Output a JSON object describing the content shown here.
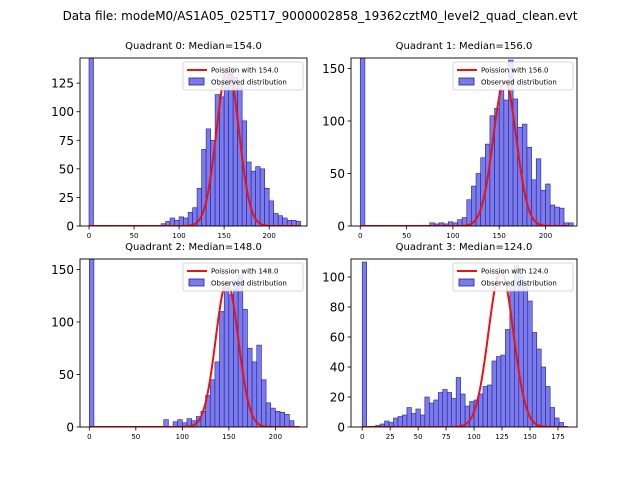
{
  "suptitle": "Data file: modeM0/AS1A05_025T17_9000002858_19362cztM0_level2_quad_clean.evt",
  "colors": {
    "bar_fill": "#7b7bea",
    "bar_edge": "#2020a0",
    "curve": "#ee1111"
  },
  "chart_data": [
    {
      "type": "bar",
      "title": "Quadrant 0: Median=154.0",
      "legend": {
        "curve": "Poission with 154.0",
        "bars": "Observed distribution",
        "placement": "upper-right"
      },
      "xlim": [
        -10,
        242
      ],
      "ylim": [
        0,
        147
      ],
      "xticks": [
        0,
        50,
        100,
        150,
        200
      ],
      "yticks": [
        0,
        25,
        50,
        75,
        100,
        125
      ],
      "bin_width": 5,
      "bins": [
        0,
        80,
        85,
        90,
        95,
        100,
        105,
        110,
        115,
        120,
        125,
        130,
        135,
        140,
        145,
        150,
        155,
        160,
        165,
        170,
        175,
        180,
        185,
        190,
        195,
        200,
        205,
        210,
        215,
        220,
        225,
        230
      ],
      "counts": [
        147,
        2,
        4,
        7,
        5,
        8,
        7,
        12,
        16,
        33,
        67,
        85,
        75,
        115,
        113,
        133,
        139,
        130,
        124,
        92,
        56,
        48,
        52,
        50,
        33,
        22,
        11,
        9,
        7,
        5,
        5,
        4
      ],
      "curve_mean": 154.0,
      "curve_peak": 138
    },
    {
      "type": "bar",
      "title": "Quadrant 1: Median=156.0",
      "legend": {
        "curve": "Poission with 156.0",
        "bars": "Observed distribution",
        "placement": "upper-right"
      },
      "xlim": [
        -10,
        234
      ],
      "ylim": [
        0,
        160
      ],
      "xticks": [
        0,
        50,
        100,
        150,
        200
      ],
      "yticks": [
        0,
        50,
        100,
        150
      ],
      "bin_width": 5,
      "bins": [
        0,
        75,
        80,
        85,
        90,
        95,
        100,
        105,
        110,
        115,
        120,
        125,
        130,
        135,
        140,
        145,
        150,
        155,
        160,
        165,
        170,
        175,
        180,
        185,
        190,
        195,
        200,
        205,
        210,
        215,
        220,
        225
      ],
      "counts": [
        160,
        3,
        2,
        3,
        2,
        4,
        3,
        6,
        8,
        25,
        38,
        50,
        65,
        78,
        105,
        112,
        130,
        120,
        158,
        121,
        94,
        97,
        75,
        44,
        64,
        34,
        40,
        20,
        18,
        17,
        3,
        3
      ],
      "curve_mean": 156.0,
      "curve_peak": 138
    },
    {
      "type": "bar",
      "title": "Quadrant 2: Median=148.0",
      "legend": {
        "curve": "Poission with 148.0",
        "bars": "Observed distribution",
        "placement": "upper-right"
      },
      "xlim": [
        -10,
        234
      ],
      "ylim": [
        0,
        160
      ],
      "xticks": [
        0,
        50,
        100,
        150,
        200
      ],
      "yticks": [
        0,
        50,
        100,
        150
      ],
      "bin_width": 5,
      "bins": [
        0,
        80,
        90,
        95,
        100,
        105,
        110,
        115,
        120,
        125,
        130,
        135,
        140,
        145,
        150,
        155,
        160,
        165,
        170,
        175,
        180,
        185,
        190,
        195,
        200,
        205,
        210,
        215
      ],
      "counts": [
        160,
        7,
        5,
        7,
        4,
        8,
        6,
        10,
        15,
        30,
        45,
        62,
        110,
        138,
        126,
        140,
        145,
        112,
        75,
        62,
        78,
        45,
        23,
        18,
        15,
        14,
        12,
        6
      ],
      "curve_mean": 148.0,
      "curve_peak": 138
    },
    {
      "type": "bar",
      "title": "Quadrant 3: Median=124.0",
      "legend": {
        "curve": "Poission with 124.0",
        "bars": "Observed distribution",
        "placement": "upper-right"
      },
      "xlim": [
        -10,
        192
      ],
      "ylim": [
        0,
        112
      ],
      "xticks": [
        0,
        25,
        50,
        75,
        100,
        125,
        150,
        175
      ],
      "yticks": [
        0,
        20,
        40,
        60,
        80,
        100
      ],
      "bin_width": 4,
      "bins": [
        0,
        12,
        16,
        20,
        24,
        28,
        32,
        36,
        40,
        44,
        48,
        52,
        56,
        60,
        64,
        68,
        72,
        76,
        80,
        84,
        88,
        92,
        96,
        100,
        104,
        108,
        112,
        116,
        120,
        124,
        128,
        132,
        136,
        140,
        144,
        148,
        152,
        156,
        160,
        164,
        168,
        172,
        176
      ],
      "counts": [
        110,
        1,
        2,
        4,
        3,
        6,
        7,
        8,
        13,
        9,
        12,
        8,
        20,
        16,
        18,
        23,
        25,
        23,
        19,
        33,
        22,
        14,
        17,
        18,
        22,
        27,
        28,
        44,
        47,
        48,
        65,
        94,
        108,
        100,
        96,
        84,
        63,
        52,
        40,
        27,
        13,
        6,
        3
      ],
      "curve_mean": 124.0,
      "curve_peak": 104
    }
  ]
}
